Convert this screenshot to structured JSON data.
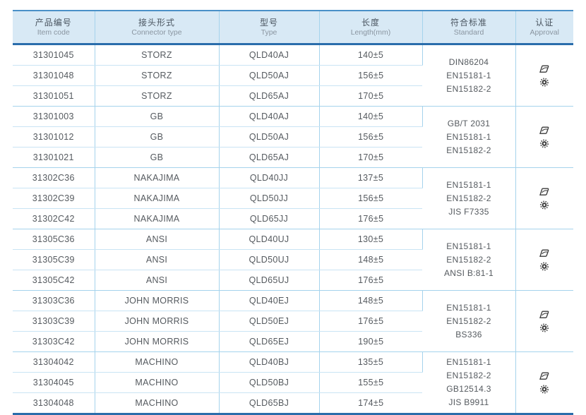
{
  "colors": {
    "header_background": "#d8e9f5",
    "grid_line_light": "#a5d3ec",
    "border_top_blue": "#4a90c8",
    "border_dark_blue": "#2a6dab",
    "body_text": "#555a5f"
  },
  "table": {
    "columns": [
      {
        "zh": "产品编号",
        "en": "Item code"
      },
      {
        "zh": "接头形式",
        "en": "Connector type"
      },
      {
        "zh": "型号",
        "en": "Type"
      },
      {
        "zh": "长度",
        "en": "Length(mm)"
      },
      {
        "zh": "符合标准",
        "en": "Standard"
      },
      {
        "zh": "认证",
        "en": "Approval"
      }
    ],
    "groups": [
      {
        "rows": [
          {
            "item_code": "31301045",
            "connector_type": "STORZ",
            "type": "QLD40AJ",
            "length": "140±5"
          },
          {
            "item_code": "31301048",
            "connector_type": "STORZ",
            "type": "QLD50AJ",
            "length": "156±5"
          },
          {
            "item_code": "31301051",
            "connector_type": "STORZ",
            "type": "QLD65AJ",
            "length": "170±5"
          }
        ],
        "standards": [
          "DIN86204",
          "EN15181-1",
          "EN15182-2"
        ],
        "approvals": [
          "cert-stamp",
          "gear-seal"
        ]
      },
      {
        "rows": [
          {
            "item_code": "31301003",
            "connector_type": "GB",
            "type": "QLD40AJ",
            "length": "140±5"
          },
          {
            "item_code": "31301012",
            "connector_type": "GB",
            "type": "QLD50AJ",
            "length": "156±5"
          },
          {
            "item_code": "31301021",
            "connector_type": "GB",
            "type": "QLD65AJ",
            "length": "170±5"
          }
        ],
        "standards": [
          "GB/T 2031",
          "EN15181-1",
          "EN15182-2"
        ],
        "approvals": [
          "cert-stamp",
          "gear-seal"
        ]
      },
      {
        "rows": [
          {
            "item_code": "31302C36",
            "connector_type": "NAKAJIMA",
            "type": "QLD40JJ",
            "length": "137±5"
          },
          {
            "item_code": "31302C39",
            "connector_type": "NAKAJIMA",
            "type": "QLD50JJ",
            "length": "156±5"
          },
          {
            "item_code": "31302C42",
            "connector_type": "NAKAJIMA",
            "type": "QLD65JJ",
            "length": "176±5"
          }
        ],
        "standards": [
          "EN15181-1",
          "EN15182-2",
          "JIS F7335"
        ],
        "approvals": [
          "cert-stamp",
          "gear-seal"
        ]
      },
      {
        "rows": [
          {
            "item_code": "31305C36",
            "connector_type": "ANSI",
            "type": "QLD40UJ",
            "length": "130±5"
          },
          {
            "item_code": "31305C39",
            "connector_type": "ANSI",
            "type": "QLD50UJ",
            "length": "148±5"
          },
          {
            "item_code": "31305C42",
            "connector_type": "ANSI",
            "type": "QLD65UJ",
            "length": "176±5"
          }
        ],
        "standards": [
          "EN15181-1",
          "EN15182-2",
          "ANSI B:81-1"
        ],
        "approvals": [
          "cert-stamp",
          "gear-seal"
        ]
      },
      {
        "rows": [
          {
            "item_code": "31303C36",
            "connector_type": "JOHN MORRIS",
            "type": "QLD40EJ",
            "length": "148±5"
          },
          {
            "item_code": "31303C39",
            "connector_type": "JOHN MORRIS",
            "type": "QLD50EJ",
            "length": "176±5"
          },
          {
            "item_code": "31303C42",
            "connector_type": "JOHN MORRIS",
            "type": "QLD65EJ",
            "length": "190±5"
          }
        ],
        "standards": [
          "EN15181-1",
          "EN15182-2",
          "BS336"
        ],
        "approvals": [
          "cert-stamp",
          "gear-seal"
        ]
      },
      {
        "rows": [
          {
            "item_code": "31304042",
            "connector_type": "MACHINO",
            "type": "QLD40BJ",
            "length": "135±5"
          },
          {
            "item_code": "31304045",
            "connector_type": "MACHINO",
            "type": "QLD50BJ",
            "length": "155±5"
          },
          {
            "item_code": "31304048",
            "connector_type": "MACHINO",
            "type": "QLD65BJ",
            "length": "174±5"
          }
        ],
        "standards": [
          "EN15181-1",
          "EN15182-2",
          "GB12514.3",
          "JIS B9911"
        ],
        "approvals": [
          "cert-stamp",
          "gear-seal"
        ]
      }
    ]
  }
}
